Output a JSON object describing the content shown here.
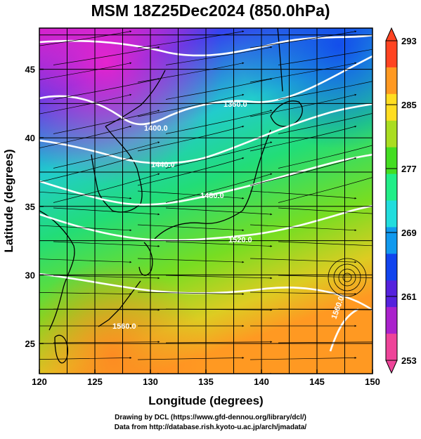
{
  "title": "MSM 18Z25Dec2024 (850.0hPa)",
  "xlabel": "Longitude (degrees)",
  "ylabel": "Latitude  (degrees)",
  "x_ticks": [
    "120",
    "125",
    "130",
    "135",
    "140",
    "145",
    "150"
  ],
  "y_ticks": [
    "25",
    "30",
    "35",
    "40",
    "45"
  ],
  "colorbar": {
    "min": 253,
    "max": 293,
    "ticks": [
      "293",
      "285",
      "277",
      "269",
      "261",
      "253"
    ],
    "colors": [
      "#ee4499",
      "#aa22cc",
      "#5522dd",
      "#1144ee",
      "#1199ee",
      "#22dddd",
      "#22ee88",
      "#44dd22",
      "#aadd22",
      "#ffdd22",
      "#ff9922",
      "#ff4422"
    ]
  },
  "contour_labels": [
    "1360.0",
    "1400.0",
    "1440.0",
    "1480.0",
    "1520.0",
    "1560.0",
    "1560.0"
  ],
  "credits": {
    "line1": "Drawing by DCL (https://www.gfd-dennou.org/library/dcl/)",
    "line2": "Data from http://database.rish.kyoto-u.ac.jp/arch/jmadata/"
  }
}
